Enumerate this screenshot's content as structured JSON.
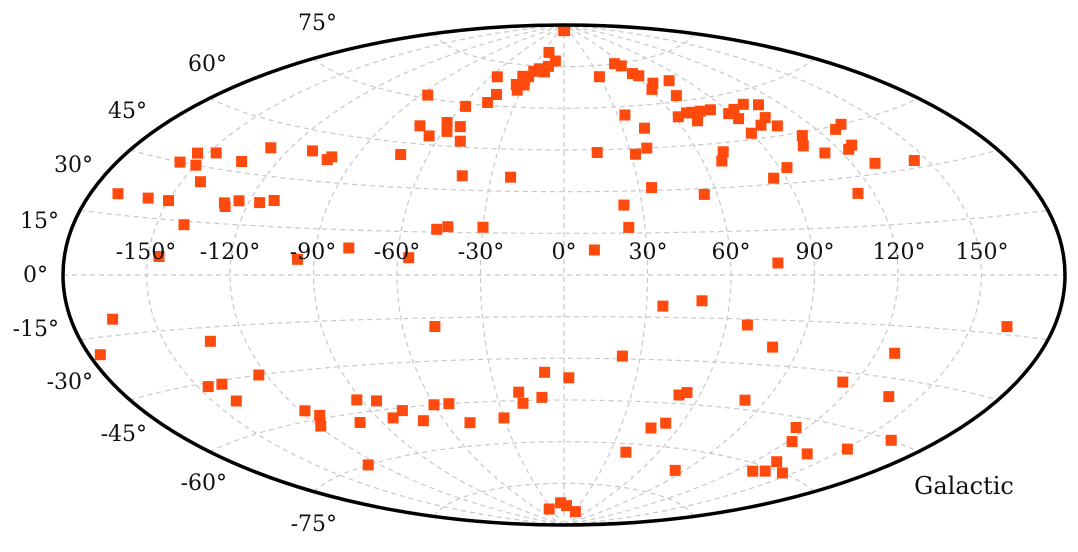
{
  "chart_data": {
    "type": "scatter",
    "projection": "aitoff",
    "frame_label": "Galactic",
    "marker": {
      "shape": "square",
      "color": "#ff4a0d"
    },
    "grid_color": "#c8c8c8",
    "grid": true,
    "xlim": [
      -180,
      180
    ],
    "ylim": [
      -90,
      90
    ],
    "lon_tick_labels": [
      "-150°",
      "-120°",
      "-90°",
      "-60°",
      "-30°",
      "0°",
      "30°",
      "60°",
      "90°",
      "120°",
      "150°"
    ],
    "lat_tick_labels": [
      "-75°",
      "-60°",
      "-45°",
      "-30°",
      "-15°",
      "0°",
      "15°",
      "30°",
      "45°",
      "60°",
      "75°"
    ],
    "points": [
      [
        4,
        88
      ],
      [
        -2,
        88
      ],
      [
        -10,
        77
      ],
      [
        -22,
        80
      ],
      [
        -16,
        75
      ],
      [
        -20,
        74
      ],
      [
        -18,
        73
      ],
      [
        -24,
        74
      ],
      [
        -28,
        73
      ],
      [
        -30,
        71
      ],
      [
        -35,
        71
      ],
      [
        -32,
        70
      ],
      [
        -30,
        68
      ],
      [
        -36,
        68
      ],
      [
        -33,
        66
      ],
      [
        -55,
        70
      ],
      [
        -45,
        64
      ],
      [
        -47,
        61
      ],
      [
        -61,
        53
      ],
      [
        -73,
        51
      ],
      [
        -86,
        61
      ],
      [
        -58,
        59
      ],
      [
        -53,
        52
      ],
      [
        -58,
        50
      ],
      [
        -65,
        48
      ],
      [
        -49,
        47
      ],
      [
        -72,
        41
      ],
      [
        -42,
        35
      ],
      [
        -22,
        35
      ],
      [
        30,
        71
      ],
      [
        34,
        57
      ],
      [
        41,
        52
      ],
      [
        38,
        45
      ],
      [
        32,
        43
      ],
      [
        15,
        44
      ],
      [
        53,
        75
      ],
      [
        57,
        74
      ],
      [
        59,
        71
      ],
      [
        62,
        70
      ],
      [
        61,
        65
      ],
      [
        66,
        67
      ],
      [
        72,
        62
      ],
      [
        79,
        67
      ],
      [
        62,
        55
      ],
      [
        68,
        56
      ],
      [
        71,
        56
      ],
      [
        76,
        56
      ],
      [
        82,
        56
      ],
      [
        89,
        54
      ],
      [
        94,
        55
      ],
      [
        70,
        53
      ],
      [
        90,
        47
      ],
      [
        91,
        52
      ],
      [
        98,
        49
      ],
      [
        102,
        56
      ],
      [
        104,
        51
      ],
      [
        109,
        55
      ],
      [
        105,
        48
      ],
      [
        111,
        44
      ],
      [
        107,
        41
      ],
      [
        113,
        38
      ],
      [
        68,
        39
      ],
      [
        71,
        42
      ],
      [
        85,
        32
      ],
      [
        93,
        35
      ],
      [
        129,
        33
      ],
      [
        128,
        44
      ],
      [
        127,
        39
      ],
      [
        124,
        38
      ],
      [
        133,
        45
      ],
      [
        145,
        32
      ],
      [
        35,
        31
      ],
      [
        55,
        28
      ],
      [
        114,
        25
      ],
      [
        -100,
        38
      ],
      [
        -101,
        37
      ],
      [
        -110,
        39
      ],
      [
        -128,
        38
      ],
      [
        -147,
        34
      ],
      [
        -154,
        33
      ],
      [
        -157,
        30
      ],
      [
        -134,
        33
      ],
      [
        -143,
        26
      ],
      [
        -150,
        30
      ],
      [
        -124,
        22
      ],
      [
        -129,
        21
      ],
      [
        -128,
        20
      ],
      [
        -150,
        20
      ],
      [
        -158,
        20
      ],
      [
        -170,
        20
      ],
      [
        -140,
        14
      ],
      [
        -116,
        22
      ],
      [
        -111,
        23
      ],
      [
        -47,
        16
      ],
      [
        -43,
        17
      ],
      [
        -30,
        17
      ],
      [
        23,
        25
      ],
      [
        24,
        17
      ],
      [
        11,
        9
      ],
      [
        -78,
        9
      ],
      [
        -56,
        6
      ],
      [
        -96,
        5
      ],
      [
        -146,
        5
      ],
      [
        77,
        4
      ],
      [
        -165,
        -11
      ],
      [
        -176,
        -19
      ],
      [
        -48,
        -18
      ],
      [
        -133,
        -19
      ],
      [
        50,
        -9
      ],
      [
        36,
        -11
      ],
      [
        68,
        -17
      ],
      [
        80,
        -24
      ],
      [
        127,
        -23
      ],
      [
        163,
        -13
      ],
      [
        -146,
        -31
      ],
      [
        -140,
        -31
      ],
      [
        -141,
        -36
      ],
      [
        -123,
        -30
      ],
      [
        -118,
        -42
      ],
      [
        -114,
        -44
      ],
      [
        -119,
        -47
      ],
      [
        -126,
        -60
      ],
      [
        -100,
        -48
      ],
      [
        -92,
        -41
      ],
      [
        -84,
        -42
      ],
      [
        -83,
        -48
      ],
      [
        -76,
        -46
      ],
      [
        -70,
        -50
      ],
      [
        -60,
        -45
      ],
      [
        -53,
        -45
      ],
      [
        -48,
        -52
      ],
      [
        -30,
        -51
      ],
      [
        -20,
        -42
      ],
      [
        -19,
        -46
      ],
      [
        -10,
        -44
      ],
      [
        -8,
        -35
      ],
      [
        2,
        -37
      ],
      [
        23,
        -29
      ],
      [
        54,
        -41
      ],
      [
        51,
        -42
      ],
      [
        81,
        -42
      ],
      [
        52,
        -52
      ],
      [
        46,
        -54
      ],
      [
        115,
        -33
      ],
      [
        138,
        -35
      ],
      [
        115,
        -48
      ],
      [
        122,
        -52
      ],
      [
        131,
        -58
      ],
      [
        138,
        -54
      ],
      [
        151,
        -50
      ],
      [
        162,
        -45
      ],
      [
        129,
        -62
      ],
      [
        145,
        -60
      ],
      [
        135,
        -61
      ],
      [
        40,
        -63
      ],
      [
        84,
        -67
      ],
      [
        -6,
        -82
      ],
      [
        5,
        -83
      ],
      [
        -35,
        -84
      ],
      [
        32,
        -85
      ]
    ]
  }
}
